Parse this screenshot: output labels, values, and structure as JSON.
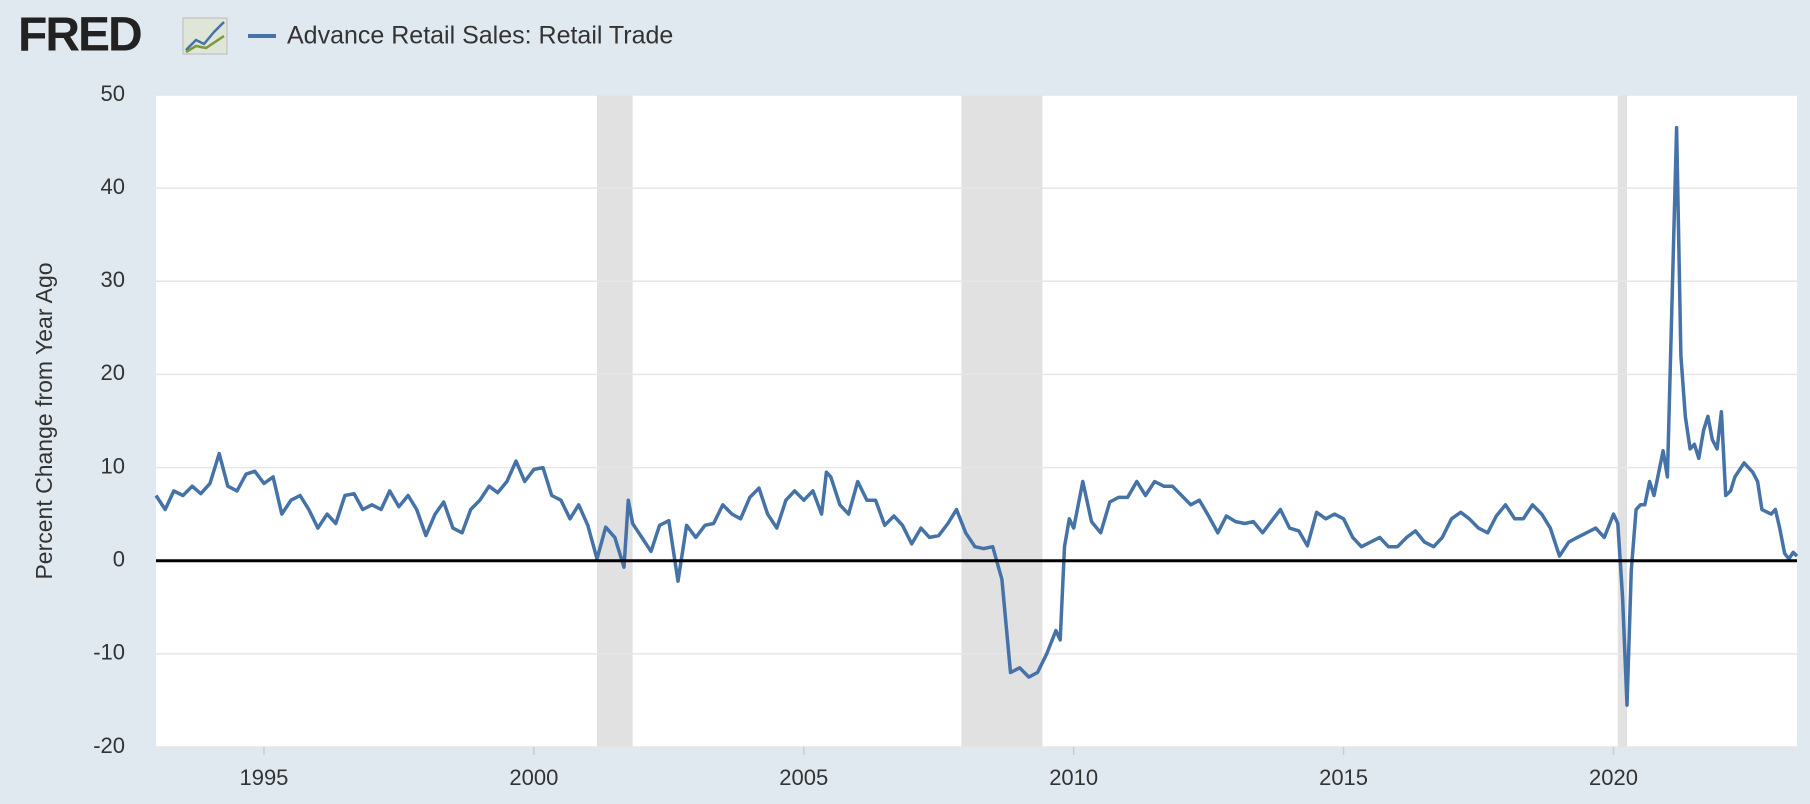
{
  "brand": "FRED",
  "chart_data": {
    "type": "line",
    "title": "Advance Retail Sales: Retail Trade",
    "y_label": "Percent Change from Year Ago",
    "xlim": [
      1993,
      2023.4
    ],
    "xticks": [
      1995,
      2000,
      2005,
      2010,
      2015,
      2020
    ],
    "ylim": [
      -20,
      50
    ],
    "yticks": [
      -20,
      -10,
      0,
      10,
      20,
      30,
      40,
      50
    ],
    "grid": true,
    "zero_line": true,
    "recessions": [
      [
        2001.17,
        2001.83
      ],
      [
        2007.92,
        2009.42
      ],
      [
        2020.08,
        2020.25
      ]
    ],
    "recession_color": "#e1e1e1",
    "series": [
      {
        "name": "Advance Retail Sales: Retail Trade",
        "color": "#4572a7",
        "x": [
          1993.0,
          1993.17,
          1993.33,
          1993.5,
          1993.67,
          1993.83,
          1994.0,
          1994.17,
          1994.33,
          1994.5,
          1994.67,
          1994.83,
          1995.0,
          1995.17,
          1995.33,
          1995.5,
          1995.67,
          1995.83,
          1996.0,
          1996.17,
          1996.33,
          1996.5,
          1996.67,
          1996.83,
          1997.0,
          1997.17,
          1997.33,
          1997.5,
          1997.67,
          1997.83,
          1998.0,
          1998.17,
          1998.33,
          1998.5,
          1998.67,
          1998.83,
          1999.0,
          1999.17,
          1999.33,
          1999.5,
          1999.67,
          1999.83,
          2000.0,
          2000.17,
          2000.33,
          2000.5,
          2000.67,
          2000.83,
          2001.0,
          2001.17,
          2001.33,
          2001.5,
          2001.67,
          2001.75,
          2001.83,
          2002.0,
          2002.17,
          2002.33,
          2002.5,
          2002.67,
          2002.83,
          2003.0,
          2003.17,
          2003.33,
          2003.5,
          2003.67,
          2003.83,
          2004.0,
          2004.17,
          2004.33,
          2004.5,
          2004.67,
          2004.83,
          2005.0,
          2005.17,
          2005.33,
          2005.42,
          2005.5,
          2005.67,
          2005.83,
          2006.0,
          2006.17,
          2006.33,
          2006.5,
          2006.67,
          2006.83,
          2007.0,
          2007.17,
          2007.33,
          2007.5,
          2007.67,
          2007.83,
          2008.0,
          2008.17,
          2008.33,
          2008.5,
          2008.67,
          2008.83,
          2009.0,
          2009.17,
          2009.33,
          2009.5,
          2009.67,
          2009.75,
          2009.83,
          2009.92,
          2010.0,
          2010.17,
          2010.33,
          2010.5,
          2010.67,
          2010.83,
          2011.0,
          2011.17,
          2011.33,
          2011.5,
          2011.67,
          2011.83,
          2012.0,
          2012.17,
          2012.33,
          2012.5,
          2012.67,
          2012.83,
          2013.0,
          2013.17,
          2013.33,
          2013.5,
          2013.67,
          2013.83,
          2014.0,
          2014.17,
          2014.33,
          2014.5,
          2014.67,
          2014.83,
          2015.0,
          2015.17,
          2015.33,
          2015.5,
          2015.67,
          2015.83,
          2016.0,
          2016.17,
          2016.33,
          2016.5,
          2016.67,
          2016.83,
          2017.0,
          2017.17,
          2017.33,
          2017.5,
          2017.67,
          2017.83,
          2018.0,
          2018.17,
          2018.33,
          2018.5,
          2018.67,
          2018.83,
          2019.0,
          2019.17,
          2019.33,
          2019.5,
          2019.67,
          2019.83,
          2020.0,
          2020.08,
          2020.17,
          2020.25,
          2020.33,
          2020.42,
          2020.5,
          2020.58,
          2020.67,
          2020.75,
          2020.92,
          2021.0,
          2021.17,
          2021.25,
          2021.33,
          2021.42,
          2021.5,
          2021.58,
          2021.67,
          2021.75,
          2021.83,
          2021.92,
          2022.0,
          2022.08,
          2022.17,
          2022.25,
          2022.42,
          2022.58,
          2022.67,
          2022.75,
          2022.92,
          2023.0,
          2023.08,
          2023.17,
          2023.25,
          2023.33,
          2023.4
        ],
        "values": [
          7,
          5.5,
          7.5,
          7,
          8,
          7.2,
          8.3,
          11.5,
          8,
          7.5,
          9.3,
          9.6,
          8.3,
          9,
          5,
          6.5,
          7,
          5.5,
          3.5,
          5,
          4,
          7,
          7.2,
          5.5,
          6,
          5.5,
          7.5,
          5.8,
          7,
          5.5,
          2.7,
          5,
          6.3,
          3.5,
          3,
          5.5,
          6.5,
          8,
          7.3,
          8.5,
          10.7,
          8.5,
          9.8,
          10,
          7,
          6.5,
          4.5,
          6,
          3.8,
          0.2,
          3.6,
          2.5,
          -0.7,
          6.5,
          4,
          2.5,
          1,
          3.8,
          4.3,
          -2.2,
          3.8,
          2.5,
          3.8,
          4,
          6,
          5,
          4.5,
          6.8,
          7.8,
          5,
          3.5,
          6.5,
          7.5,
          6.5,
          7.5,
          5,
          9.5,
          9,
          6,
          5,
          8.5,
          6.5,
          6.5,
          3.8,
          4.8,
          3.8,
          1.8,
          3.5,
          2.5,
          2.7,
          4,
          5.5,
          3,
          1.5,
          1.3,
          1.5,
          -2,
          -12,
          -11.5,
          -12.5,
          -12,
          -10,
          -7.5,
          -8.5,
          1.5,
          4.5,
          3.5,
          8.5,
          4.2,
          3,
          6.3,
          6.8,
          6.8,
          8.5,
          7,
          8.5,
          8,
          8,
          7,
          6,
          6.5,
          4.8,
          3,
          4.8,
          4.2,
          4,
          4.2,
          3,
          4.3,
          5.5,
          3.5,
          3.2,
          1.6,
          5.2,
          4.5,
          5,
          4.5,
          2.5,
          1.5,
          2,
          2.5,
          1.5,
          1.5,
          2.5,
          3.2,
          2,
          1.5,
          2.5,
          4.5,
          5.2,
          4.5,
          3.5,
          3,
          4.8,
          6,
          4.5,
          4.5,
          6,
          5,
          3.5,
          0.5,
          2,
          2.5,
          3,
          3.5,
          2.5,
          5,
          4,
          -4,
          -15.5,
          -1,
          5.5,
          6,
          6,
          8.5,
          7,
          11.8,
          9,
          46.5,
          22,
          15.5,
          12,
          12.5,
          11,
          14,
          15.5,
          13,
          12,
          16,
          7,
          7.5,
          9,
          10.5,
          9.5,
          8.5,
          5.5,
          5,
          5.5,
          3.5,
          0.8,
          0.2,
          0.9,
          0.5
        ]
      }
    ]
  }
}
